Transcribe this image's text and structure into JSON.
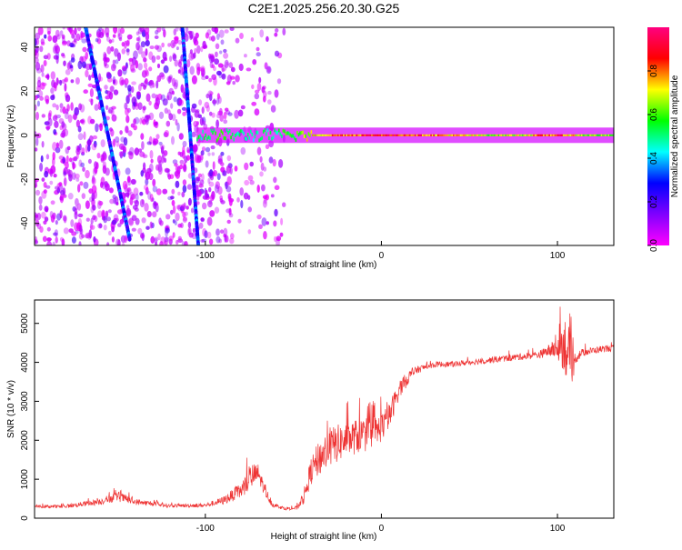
{
  "title": "C2E1.2025.256.20.30.G25",
  "chart_data": [
    {
      "type": "heatmap",
      "title": "C2E1.2025.256.20.30.G25",
      "xlabel": "Height of straight line (km)",
      "ylabel": "Frequency (Hz)",
      "xlim": [
        -197,
        132
      ],
      "ylim": [
        -50,
        49
      ],
      "xticks": [
        -100,
        0,
        100
      ],
      "xtick_labels": [
        "-100",
        "0",
        "100"
      ],
      "yticks": [
        40,
        20,
        0,
        -20,
        -40
      ],
      "ytick_labels": [
        "40",
        "20",
        "0",
        "-20",
        "-40"
      ],
      "colorbar": {
        "label": "Normalized spectral amplitude",
        "range": [
          0,
          1
        ],
        "ticks": [
          0.0,
          0.2,
          0.4,
          0.6,
          0.8
        ],
        "tick_labels": [
          "0.0",
          "0.2",
          "0.4",
          "0.6",
          "0.8"
        ],
        "colors": [
          "#ff00ff",
          "#8000ff",
          "#0000ff",
          "#00ffff",
          "#00ff00",
          "#ffff00",
          "#ff0000",
          "#ff0080"
        ]
      },
      "features": {
        "carrier_line": {
          "freq_hz": 0,
          "x_start_km": -105,
          "x_end_km": 132,
          "amplitude": [
            [
              -105,
              0.55
            ],
            [
              -90,
              0.6
            ],
            [
              -75,
              0.5
            ],
            [
              -60,
              0.55
            ],
            [
              -45,
              0.7
            ],
            [
              -30,
              0.85
            ],
            [
              -15,
              0.9
            ],
            [
              0,
              0.95
            ],
            [
              20,
              0.9
            ],
            [
              40,
              0.8
            ],
            [
              60,
              0.7
            ],
            [
              80,
              0.75
            ],
            [
              100,
              0.9
            ],
            [
              115,
              0.7
            ],
            [
              132,
              0.65
            ]
          ]
        },
        "diagonal_streaks": [
          {
            "x_start_km": -168,
            "f_start_hz": 49,
            "x_end_km": -143,
            "f_end_hz": -47
          },
          {
            "x_start_km": -113,
            "f_start_hz": 49,
            "x_end_km": -104,
            "f_end_hz": -50
          }
        ],
        "noise_region_km": [
          -197,
          -55
        ]
      }
    },
    {
      "type": "line",
      "xlabel": "Height of straight line (km)",
      "ylabel": "SNR (10 * v/v)",
      "xlim": [
        -197,
        132
      ],
      "ylim": [
        0,
        5600
      ],
      "xticks": [
        -100,
        0,
        100
      ],
      "xtick_labels": [
        "-100",
        "0",
        "100"
      ],
      "yticks": [
        0,
        1000,
        2000,
        3000,
        4000,
        5000
      ],
      "ytick_labels": [
        "0",
        "1000",
        "2000",
        "3000",
        "4000",
        "5000"
      ],
      "series": [
        {
          "name": "SNR",
          "color": "#ee3333",
          "x": [
            -197,
            -180,
            -160,
            -150,
            -140,
            -120,
            -100,
            -90,
            -80,
            -74,
            -70,
            -66,
            -62,
            -55,
            -48,
            -44,
            -40,
            -36,
            -32,
            -26,
            -20,
            -14,
            -8,
            -2,
            4,
            10,
            16,
            20,
            26,
            32,
            40,
            50,
            60,
            70,
            80,
            90,
            95,
            100,
            104,
            106,
            108,
            110,
            114,
            120,
            126,
            132
          ],
          "y": [
            300,
            300,
            420,
            560,
            420,
            320,
            330,
            450,
            700,
            1050,
            1150,
            700,
            350,
            250,
            260,
            550,
            1200,
            1500,
            1700,
            1900,
            2000,
            2100,
            2150,
            2250,
            2550,
            3300,
            3650,
            3800,
            3900,
            3950,
            3950,
            4000,
            4050,
            4100,
            4150,
            4200,
            4300,
            4350,
            4500,
            4200,
            3800,
            4100,
            4250,
            4300,
            4350,
            4350
          ],
          "spread": [
            70,
            90,
            160,
            260,
            160,
            90,
            100,
            200,
            400,
            700,
            500,
            300,
            120,
            80,
            100,
            400,
            700,
            900,
            1000,
            1000,
            900,
            900,
            900,
            800,
            700,
            500,
            300,
            200,
            150,
            150,
            150,
            150,
            160,
            170,
            180,
            200,
            300,
            600,
            1500,
            1700,
            1300,
            300,
            200,
            180,
            180,
            180
          ]
        }
      ]
    }
  ]
}
